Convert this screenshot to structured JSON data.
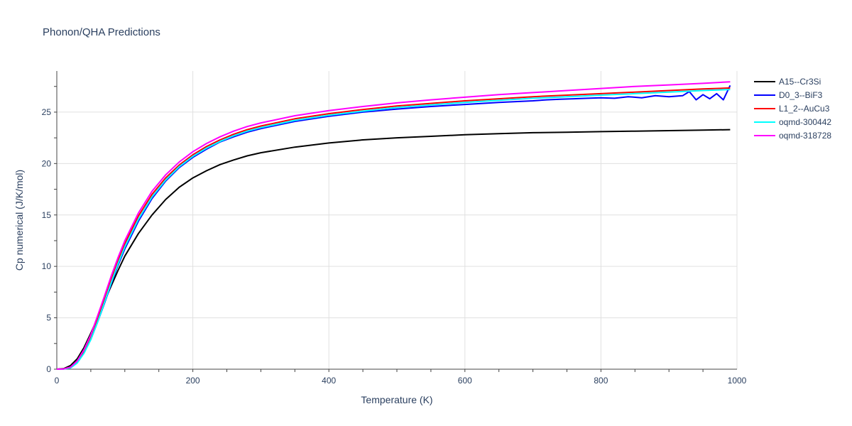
{
  "chart_data": {
    "type": "line",
    "title": "Phonon/QHA Predictions",
    "xlabel": "Temperature (K)",
    "ylabel": "Cp numerical (J/K/mol)",
    "xlim": [
      0,
      1000
    ],
    "ylim": [
      0,
      29
    ],
    "x_ticks": [
      "0",
      "200",
      "400",
      "600",
      "800",
      "1000"
    ],
    "y_ticks": [
      "0",
      "5",
      "10",
      "15",
      "20",
      "25"
    ],
    "grid": true,
    "legend_position": "top-right",
    "series": [
      {
        "name": "A15--Cr3Si",
        "color": "#000000",
        "x": [
          0,
          10,
          20,
          30,
          40,
          50,
          60,
          70,
          80,
          90,
          100,
          120,
          140,
          160,
          180,
          200,
          220,
          240,
          260,
          280,
          300,
          350,
          400,
          450,
          500,
          550,
          600,
          650,
          700,
          750,
          800,
          850,
          900,
          950,
          990
        ],
        "y": [
          0,
          0.05,
          0.35,
          1.0,
          2.1,
          3.5,
          5.0,
          6.6,
          8.1,
          9.6,
          11.0,
          13.2,
          15.0,
          16.5,
          17.7,
          18.6,
          19.3,
          19.9,
          20.35,
          20.75,
          21.05,
          21.6,
          22.0,
          22.3,
          22.5,
          22.65,
          22.8,
          22.9,
          23.0,
          23.05,
          23.1,
          23.15,
          23.2,
          23.25,
          23.3
        ]
      },
      {
        "name": "D0_3--BiF3",
        "color": "#0000ff",
        "x": [
          0,
          10,
          20,
          30,
          40,
          50,
          60,
          70,
          80,
          90,
          100,
          120,
          140,
          160,
          180,
          200,
          220,
          240,
          260,
          280,
          300,
          350,
          400,
          450,
          500,
          550,
          600,
          650,
          700,
          720,
          740,
          760,
          780,
          800,
          820,
          840,
          860,
          880,
          900,
          920,
          930,
          940,
          950,
          960,
          970,
          980,
          990
        ],
        "y": [
          0,
          0.02,
          0.15,
          0.65,
          1.6,
          2.9,
          4.6,
          6.4,
          8.3,
          10.1,
          11.7,
          14.4,
          16.6,
          18.3,
          19.6,
          20.6,
          21.4,
          22.1,
          22.6,
          23.05,
          23.4,
          24.1,
          24.6,
          25.0,
          25.3,
          25.55,
          25.75,
          25.95,
          26.1,
          26.2,
          26.25,
          26.3,
          26.35,
          26.4,
          26.35,
          26.5,
          26.4,
          26.6,
          26.5,
          26.6,
          27.0,
          26.2,
          26.7,
          26.3,
          26.8,
          26.2,
          27.6
        ]
      },
      {
        "name": "L1_2--AuCu3",
        "color": "#ff0000",
        "x": [
          0,
          10,
          20,
          30,
          40,
          50,
          60,
          70,
          80,
          90,
          100,
          120,
          140,
          160,
          180,
          200,
          220,
          240,
          260,
          280,
          300,
          350,
          400,
          450,
          500,
          550,
          600,
          650,
          700,
          750,
          800,
          850,
          900,
          950,
          990
        ],
        "y": [
          0,
          0.02,
          0.18,
          0.75,
          1.8,
          3.2,
          5.0,
          6.9,
          8.8,
          10.6,
          12.2,
          14.9,
          17.0,
          18.6,
          19.85,
          20.85,
          21.65,
          22.3,
          22.85,
          23.3,
          23.65,
          24.35,
          24.85,
          25.25,
          25.6,
          25.85,
          26.1,
          26.3,
          26.5,
          26.65,
          26.8,
          26.95,
          27.1,
          27.25,
          27.35
        ]
      },
      {
        "name": "oqmd-300442",
        "color": "#00ffff",
        "x": [
          0,
          10,
          20,
          30,
          40,
          50,
          60,
          70,
          80,
          90,
          100,
          120,
          140,
          160,
          180,
          200,
          220,
          240,
          260,
          280,
          300,
          350,
          400,
          450,
          500,
          550,
          600,
          650,
          700,
          750,
          800,
          850,
          900,
          950,
          990
        ],
        "y": [
          0,
          0.01,
          0.12,
          0.6,
          1.55,
          2.9,
          4.6,
          6.5,
          8.4,
          10.25,
          11.9,
          14.6,
          16.75,
          18.4,
          19.7,
          20.7,
          21.5,
          22.15,
          22.7,
          23.15,
          23.5,
          24.2,
          24.7,
          25.1,
          25.45,
          25.7,
          25.95,
          26.15,
          26.35,
          26.5,
          26.65,
          26.8,
          26.95,
          27.1,
          27.2
        ]
      },
      {
        "name": "oqmd-318728",
        "color": "#ff00ff",
        "x": [
          0,
          10,
          20,
          30,
          40,
          50,
          60,
          70,
          80,
          90,
          100,
          120,
          140,
          160,
          180,
          200,
          220,
          240,
          260,
          280,
          300,
          350,
          400,
          450,
          500,
          550,
          600,
          650,
          700,
          750,
          800,
          850,
          900,
          950,
          990
        ],
        "y": [
          0,
          0.02,
          0.2,
          0.8,
          1.9,
          3.35,
          5.2,
          7.1,
          9.05,
          10.85,
          12.5,
          15.2,
          17.3,
          18.9,
          20.15,
          21.15,
          21.95,
          22.6,
          23.15,
          23.6,
          23.95,
          24.65,
          25.15,
          25.55,
          25.9,
          26.2,
          26.45,
          26.7,
          26.9,
          27.1,
          27.3,
          27.5,
          27.65,
          27.8,
          27.95
        ]
      }
    ]
  }
}
